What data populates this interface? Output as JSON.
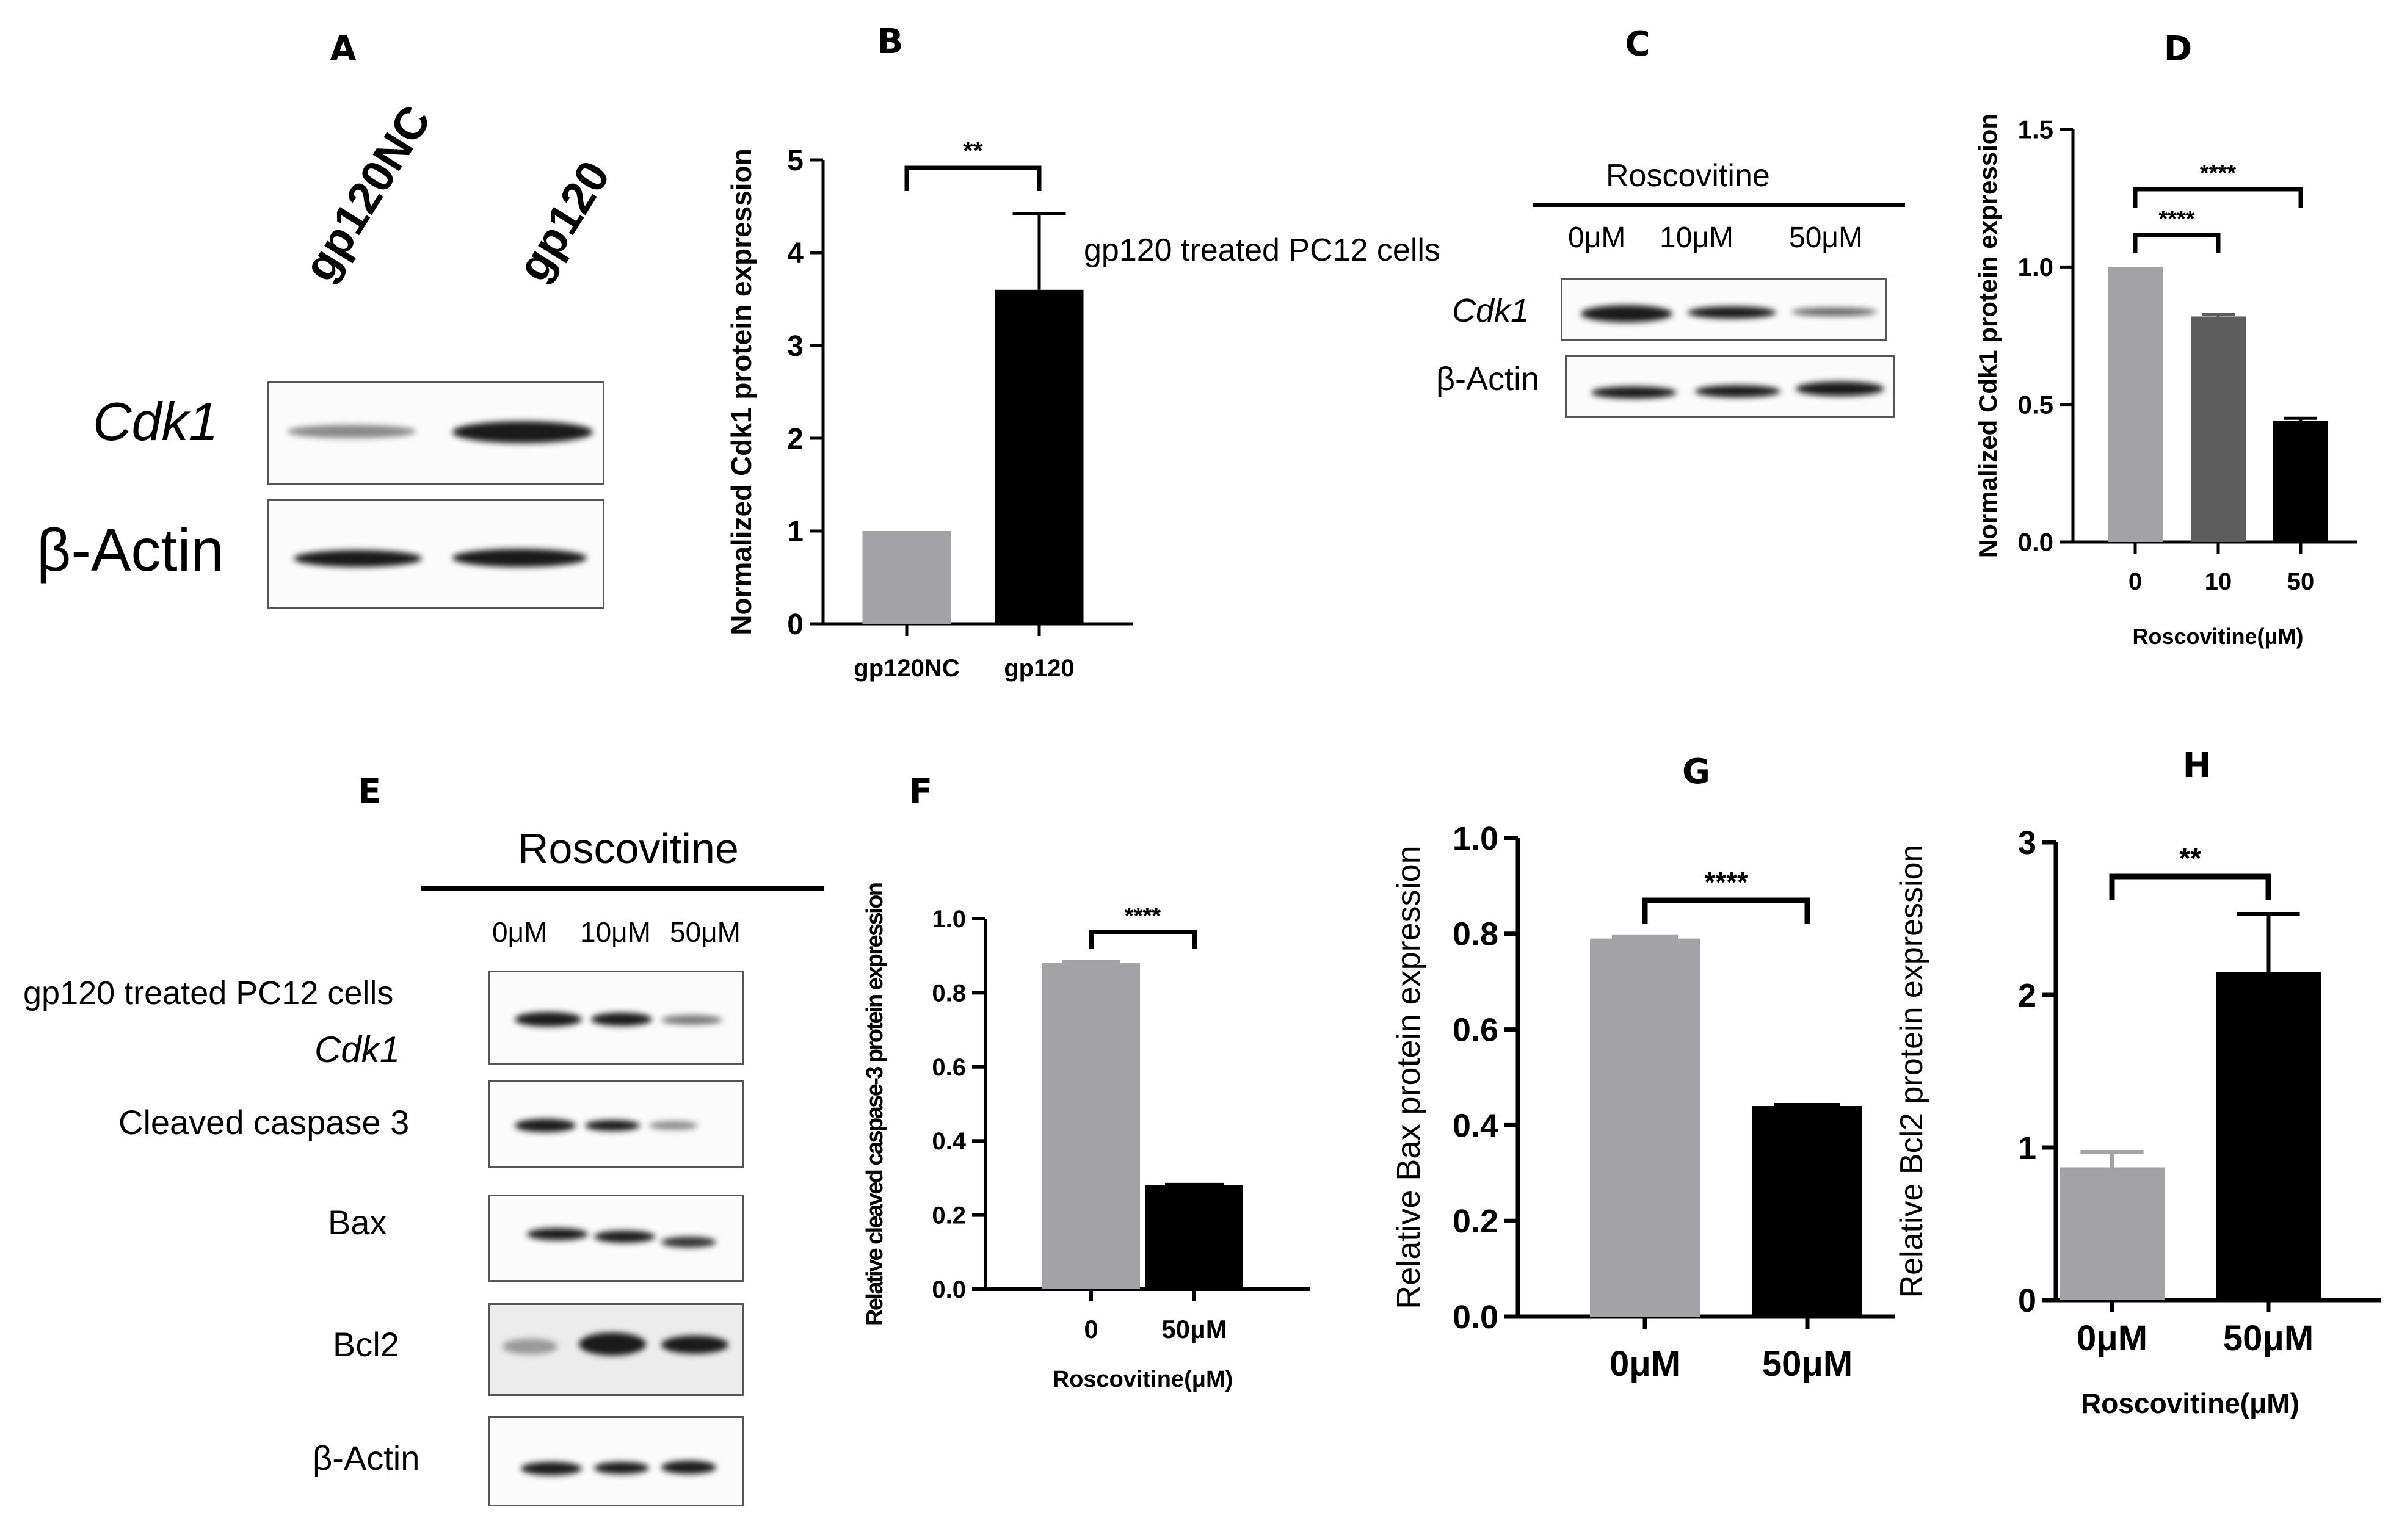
{
  "panels": {
    "A": {
      "label": "A",
      "lanes": [
        "gp120NC",
        "gp120"
      ],
      "rows": [
        "Cdk1",
        "β-Actin"
      ]
    },
    "C": {
      "label": "C",
      "treatment": "Roscovitine",
      "lanes": [
        "0μM",
        "10μM",
        "50μM"
      ],
      "rows": [
        "Cdk1",
        "β-Actin"
      ]
    },
    "E": {
      "label": "E",
      "treatment": "Roscovitine",
      "lanes": [
        "0μM",
        "10μM",
        "50μM"
      ],
      "cell_label": "gp120 treated PC12 cells",
      "rows": [
        "Cdk1",
        "Cleaved caspase 3",
        "Bax",
        "Bcl2",
        "β-Actin"
      ]
    },
    "B_note": "gp120 treated PC12 cells"
  },
  "colors": {
    "gray": "#a3a3a7",
    "dark_gray": "#5d5d5d",
    "black": "#000000"
  },
  "chart_data": [
    {
      "panel": "B",
      "type": "bar",
      "categories": [
        "gp120NC",
        "gp120"
      ],
      "values": [
        1.0,
        3.6
      ],
      "errors": [
        0,
        0.82
      ],
      "colors": [
        "#a3a3a7",
        "#000000"
      ],
      "ylabel": "Normalized Cdk1 protein expression",
      "xlabel": "",
      "ylim": [
        0,
        5
      ],
      "yticks": [
        "0",
        "1",
        "2",
        "3",
        "4",
        "5"
      ],
      "significance": [
        {
          "from": 0,
          "to": 1,
          "label": "**"
        }
      ]
    },
    {
      "panel": "D",
      "type": "bar",
      "categories": [
        "0",
        "10",
        "50"
      ],
      "values": [
        1.0,
        0.82,
        0.44
      ],
      "errors": [
        0,
        0.008,
        0.01
      ],
      "colors": [
        "#a3a3a7",
        "#5d5d5d",
        "#000000"
      ],
      "ylabel": "Normalized Cdk1 protein expression",
      "xlabel": "Roscovitine(μM)",
      "ylim": [
        0,
        1.5
      ],
      "yticks": [
        "0.0",
        "0.5",
        "1.0",
        "1.5"
      ],
      "significance": [
        {
          "from": 0,
          "to": 1,
          "label": "****"
        },
        {
          "from": 0,
          "to": 2,
          "label": "****"
        }
      ]
    },
    {
      "panel": "F",
      "type": "bar",
      "categories": [
        "0",
        "50μM"
      ],
      "values": [
        0.88,
        0.28
      ],
      "errors": [
        0.003,
        0.002
      ],
      "colors": [
        "#a3a3a7",
        "#000000"
      ],
      "ylabel": "Relative cleaved caspase-3 protein expression",
      "xlabel": "Roscovitine(μM)",
      "ylim": [
        0,
        1.0
      ],
      "yticks": [
        "0.0",
        "0.2",
        "0.4",
        "0.6",
        "0.8",
        "1.0"
      ],
      "significance": [
        {
          "from": 0,
          "to": 1,
          "label": "****"
        }
      ]
    },
    {
      "panel": "G",
      "type": "bar",
      "categories": [
        "0μM",
        "50μM"
      ],
      "values": [
        0.79,
        0.44
      ],
      "errors": [
        0.003,
        0.002
      ],
      "colors": [
        "#a3a3a7",
        "#000000"
      ],
      "ylabel": "Relative Bax protein expression",
      "xlabel": "",
      "ylim": [
        0,
        1.0
      ],
      "yticks": [
        "0.0",
        "0.2",
        "0.4",
        "0.6",
        "0.8",
        "1.0"
      ],
      "significance": [
        {
          "from": 0,
          "to": 1,
          "label": "****"
        }
      ]
    },
    {
      "panel": "H",
      "type": "bar",
      "categories": [
        "0μM",
        "50μM"
      ],
      "values": [
        0.87,
        2.15
      ],
      "errors": [
        0.1,
        0.38
      ],
      "colors": [
        "#a3a3a7",
        "#000000"
      ],
      "ylabel": "Relative Bcl2 protein expression",
      "xlabel": "Roscovitine(μM)",
      "ylim": [
        0,
        3
      ],
      "yticks": [
        "0",
        "1",
        "2",
        "3"
      ],
      "significance": [
        {
          "from": 0,
          "to": 1,
          "label": "**"
        }
      ]
    }
  ]
}
